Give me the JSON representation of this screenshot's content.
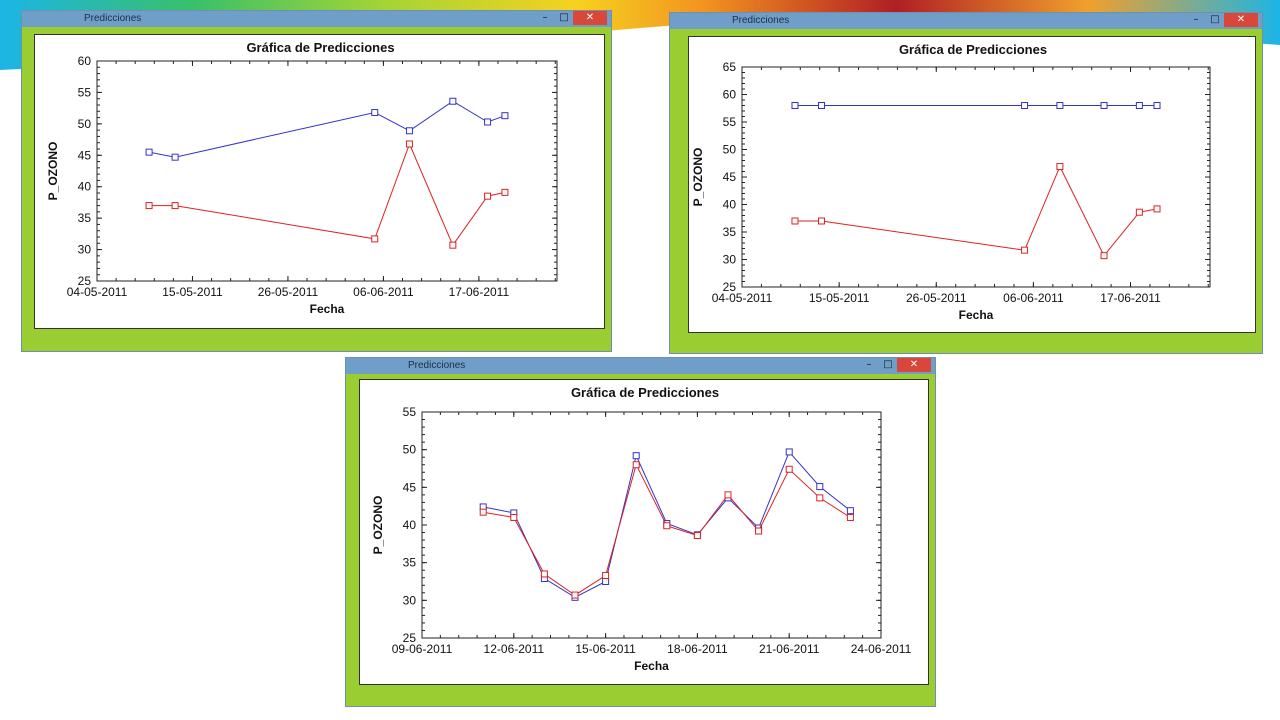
{
  "windows": [
    {
      "title": "Predicciones",
      "controls": {
        "minimize": "–",
        "maximize": "□",
        "close": "✕"
      },
      "chart_data": {
        "type": "line",
        "title": "Gráfica de Predicciones",
        "xlabel": "Fecha",
        "ylabel": "P_OZONO",
        "x_ticks": [
          "04-05-2011",
          "15-05-2011",
          "26-05-2011",
          "06-06-2011",
          "17-06-2011"
        ],
        "xlim": [
          "2011-05-04",
          "2011-06-26"
        ],
        "ylim": [
          25,
          60
        ],
        "y_ticks": [
          25,
          30,
          35,
          40,
          45,
          50,
          55,
          60
        ],
        "marker": "square",
        "series": [
          {
            "color": "#3333cc",
            "x": [
              "2011-05-10",
              "2011-05-13",
              "2011-06-05",
              "2011-06-09",
              "2011-06-14",
              "2011-06-18",
              "2011-06-20"
            ],
            "y": [
              45.5,
              44.7,
              51.8,
              48.9,
              53.6,
              50.3,
              51.3
            ]
          },
          {
            "color": "#dd2222",
            "x": [
              "2011-05-10",
              "2011-05-13",
              "2011-06-05",
              "2011-06-09",
              "2011-06-14",
              "2011-06-18",
              "2011-06-20"
            ],
            "y": [
              37,
              37,
              31.7,
              46.8,
              30.7,
              38.5,
              39.1
            ]
          }
        ]
      }
    },
    {
      "title": "Predicciones",
      "controls": {
        "minimize": "–",
        "maximize": "□",
        "close": "✕"
      },
      "chart_data": {
        "type": "line",
        "title": "Gráfica de Predicciones",
        "xlabel": "Fecha",
        "ylabel": "P_OZONO",
        "x_ticks": [
          "04-05-2011",
          "15-05-2011",
          "26-05-2011",
          "06-06-2011",
          "17-06-2011"
        ],
        "xlim": [
          "2011-05-04",
          "2011-06-26"
        ],
        "ylim": [
          25,
          65
        ],
        "y_ticks": [
          25,
          30,
          35,
          40,
          45,
          50,
          55,
          60,
          65
        ],
        "marker": "square",
        "series": [
          {
            "color": "#3333cc",
            "x": [
              "2011-05-10",
              "2011-05-13",
              "2011-06-05",
              "2011-06-09",
              "2011-06-14",
              "2011-06-18",
              "2011-06-20"
            ],
            "y": [
              58,
              58,
              58,
              58,
              58,
              58,
              58
            ]
          },
          {
            "color": "#dd2222",
            "x": [
              "2011-05-10",
              "2011-05-13",
              "2011-06-05",
              "2011-06-09",
              "2011-06-14",
              "2011-06-18",
              "2011-06-20"
            ],
            "y": [
              37,
              37,
              31.7,
              46.9,
              30.7,
              38.6,
              39.2
            ]
          }
        ]
      }
    },
    {
      "title": "Predicciones",
      "controls": {
        "minimize": "–",
        "maximize": "□",
        "close": "✕"
      },
      "chart_data": {
        "type": "line",
        "title": "Gráfica de Predicciones",
        "xlabel": "Fecha",
        "ylabel": "P_OZONO",
        "x_ticks": [
          "09-06-2011",
          "12-06-2011",
          "15-06-2011",
          "18-06-2011",
          "21-06-2011",
          "24-06-2011"
        ],
        "xlim": [
          "2011-06-09",
          "2011-06-24"
        ],
        "ylim": [
          25,
          55
        ],
        "y_ticks": [
          25,
          30,
          35,
          40,
          45,
          50,
          55
        ],
        "marker": "square",
        "series": [
          {
            "color": "#3333cc",
            "x": [
              "2011-06-11",
              "2011-06-12",
              "2011-06-13",
              "2011-06-14",
              "2011-06-15",
              "2011-06-16",
              "2011-06-17",
              "2011-06-18",
              "2011-06-19",
              "2011-06-20",
              "2011-06-21",
              "2011-06-22",
              "2011-06-23"
            ],
            "y": [
              42.4,
              41.6,
              32.9,
              30.4,
              32.5,
              49.2,
              40.2,
              38.7,
              43.6,
              39.6,
              49.7,
              45.1,
              41.9
            ]
          },
          {
            "color": "#dd2222",
            "x": [
              "2011-06-11",
              "2011-06-12",
              "2011-06-13",
              "2011-06-14",
              "2011-06-15",
              "2011-06-16",
              "2011-06-17",
              "2011-06-18",
              "2011-06-19",
              "2011-06-20",
              "2011-06-21",
              "2011-06-22",
              "2011-06-23"
            ],
            "y": [
              41.7,
              41.0,
              33.5,
              30.7,
              33.3,
              48.0,
              39.9,
              38.6,
              44.0,
              39.2,
              47.4,
              43.6,
              41.0
            ]
          }
        ]
      }
    }
  ]
}
